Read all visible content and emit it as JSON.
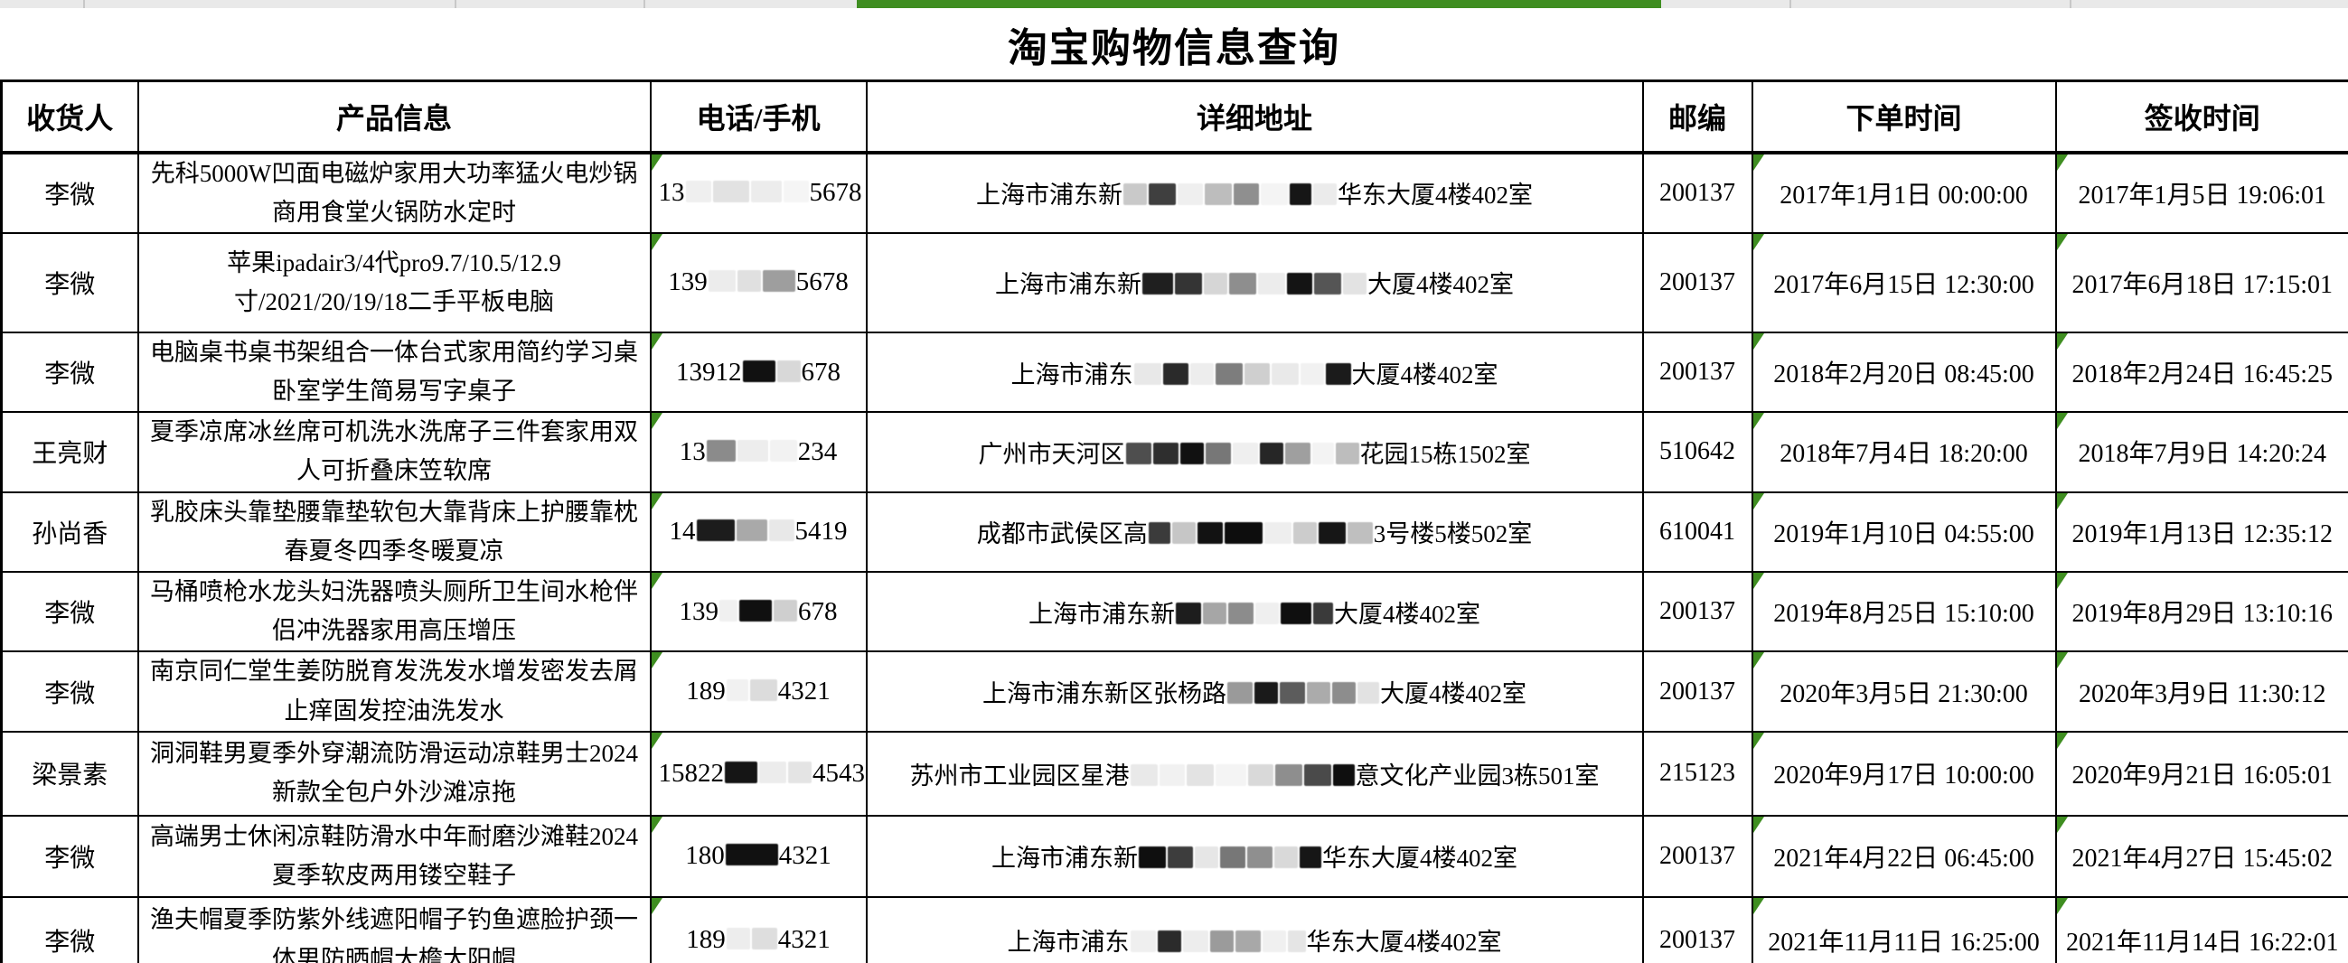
{
  "title": "淘宝购物信息查询",
  "accent_green": "#3f8e21",
  "columns": [
    {
      "key": "receiver",
      "label": "收货人"
    },
    {
      "key": "product",
      "label": "产品信息"
    },
    {
      "key": "phone",
      "label": "电话/手机"
    },
    {
      "key": "address",
      "label": "详细地址"
    },
    {
      "key": "postal",
      "label": "邮编"
    },
    {
      "key": "order_time",
      "label": "下单时间"
    },
    {
      "key": "sign_time",
      "label": "签收时间"
    }
  ],
  "error_flag_columns": [
    "phone",
    "order_time",
    "sign_time"
  ],
  "rows": [
    {
      "receiver": "李微",
      "product": "先科5000W凹面电磁炉家用大功率猛火电炒锅商用食堂火锅防水定时",
      "phone": {
        "prefix": "13",
        "masks": [
          {
            "w": 28,
            "c": "#efefef"
          },
          {
            "w": 40,
            "c": "#e2e2e2"
          },
          {
            "w": 34,
            "c": "#ececec"
          },
          {
            "w": 28,
            "c": "#f5f5f5"
          }
        ],
        "suffix": "5678"
      },
      "address": {
        "prefix": "上海市浦东新",
        "masks": [
          {
            "w": 26,
            "c": "#c9c9c9"
          },
          {
            "w": 30,
            "c": "#3f3f3f"
          },
          {
            "w": 28,
            "c": "#efefef"
          },
          {
            "w": 30,
            "c": "#bdbdbd"
          },
          {
            "w": 28,
            "c": "#8f8f8f"
          },
          {
            "w": 30,
            "c": "#f4f4f4"
          },
          {
            "w": 24,
            "c": "#161616"
          },
          {
            "w": 26,
            "c": "#ebebeb"
          }
        ],
        "suffix": "华东大厦4楼402室"
      },
      "postal": "200137",
      "order_time": "2017年1月1日 00:00:00",
      "sign_time": "2017年1月5日 19:06:01"
    },
    {
      "receiver": "李微",
      "product": "苹果ipadair3/4代pro9.7/10.5/12.9寸/2021/20/19/18二手平板电脑",
      "phone": {
        "prefix": "139",
        "masks": [
          {
            "w": 30,
            "c": "#ececec"
          },
          {
            "w": 26,
            "c": "#e0e0e0"
          },
          {
            "w": 36,
            "c": "#9e9e9e"
          }
        ],
        "suffix": "5678"
      },
      "address": {
        "prefix": "上海市浦东新",
        "masks": [
          {
            "w": 34,
            "c": "#1f1f1f"
          },
          {
            "w": 30,
            "c": "#343434"
          },
          {
            "w": 26,
            "c": "#d6d6d6"
          },
          {
            "w": 30,
            "c": "#8e8e8e"
          },
          {
            "w": 30,
            "c": "#ececec"
          },
          {
            "w": 28,
            "c": "#141414"
          },
          {
            "w": 30,
            "c": "#555555"
          },
          {
            "w": 26,
            "c": "#e3e3e3"
          }
        ],
        "suffix": "大厦4楼402室"
      },
      "postal": "200137",
      "order_time": "2017年6月15日 12:30:00",
      "sign_time": "2017年6月18日 17:15:01"
    },
    {
      "receiver": "李微",
      "product": "电脑桌书桌书架组合一体台式家用简约学习桌卧室学生简易写字桌子",
      "phone": {
        "prefix": "13912",
        "masks": [
          {
            "w": 36,
            "c": "#111111"
          },
          {
            "w": 26,
            "c": "#d8d8d8"
          }
        ],
        "suffix": "678"
      },
      "address": {
        "prefix": "上海市浦东",
        "masks": [
          {
            "w": 30,
            "c": "#e8e8e8"
          },
          {
            "w": 28,
            "c": "#2a2a2a"
          },
          {
            "w": 26,
            "c": "#ededed"
          },
          {
            "w": 30,
            "c": "#7d7d7d"
          },
          {
            "w": 28,
            "c": "#cfcfcf"
          },
          {
            "w": 30,
            "c": "#e9e9e9"
          },
          {
            "w": 26,
            "c": "#f1f1f1"
          },
          {
            "w": 28,
            "c": "#1b1b1b"
          }
        ],
        "suffix": "大厦4楼402室"
      },
      "postal": "200137",
      "order_time": "2018年2月20日 08:45:00",
      "sign_time": "2018年2月24日 16:45:25"
    },
    {
      "receiver": "王亮财",
      "product": "夏季凉席冰丝席可机洗水洗席子三件套家用双人可折叠床笠软席",
      "phone": {
        "prefix": "13",
        "masks": [
          {
            "w": 32,
            "c": "#8b8b8b"
          },
          {
            "w": 34,
            "c": "#ededed"
          },
          {
            "w": 30,
            "c": "#f2f2f2"
          }
        ],
        "suffix": "234"
      },
      "address": {
        "prefix": "广州市天河区",
        "masks": [
          {
            "w": 28,
            "c": "#4e4e4e"
          },
          {
            "w": 28,
            "c": "#2e2e2e"
          },
          {
            "w": 26,
            "c": "#111111"
          },
          {
            "w": 28,
            "c": "#777777"
          },
          {
            "w": 28,
            "c": "#efefef"
          },
          {
            "w": 26,
            "c": "#262626"
          },
          {
            "w": 28,
            "c": "#9f9f9f"
          },
          {
            "w": 24,
            "c": "#f3f3f3"
          },
          {
            "w": 26,
            "c": "#bdbdbd"
          }
        ],
        "suffix": "花园15栋1502室"
      },
      "postal": "510642",
      "order_time": "2018年7月4日 18:20:00",
      "sign_time": "2018年7月9日 14:20:24"
    },
    {
      "receiver": "孙尚香",
      "product": "乳胶床头靠垫腰靠垫软包大靠背床上护腰靠枕春夏冬四季冬暖夏凉",
      "phone": {
        "prefix": "14",
        "masks": [
          {
            "w": 42,
            "c": "#1c1c1c"
          },
          {
            "w": 34,
            "c": "#a9a9a9"
          },
          {
            "w": 28,
            "c": "#e8e8e8"
          }
        ],
        "suffix": "5419"
      },
      "address": {
        "prefix": "成都市武侯区高",
        "masks": [
          {
            "w": 24,
            "c": "#3b3b3b"
          },
          {
            "w": 26,
            "c": "#c6c6c6"
          },
          {
            "w": 28,
            "c": "#121212"
          },
          {
            "w": 42,
            "c": "#0d0d0d"
          },
          {
            "w": 30,
            "c": "#eeeeee"
          },
          {
            "w": 26,
            "c": "#cccccc"
          },
          {
            "w": 30,
            "c": "#161616"
          },
          {
            "w": 28,
            "c": "#bfbfbf"
          }
        ],
        "suffix": "3号楼5楼502室"
      },
      "postal": "610041",
      "order_time": "2019年1月10日 04:55:00",
      "sign_time": "2019年1月13日 12:35:12"
    },
    {
      "receiver": "李微",
      "product": "马桶喷枪水龙头妇洗器喷头厕所卫生间水枪伴侣冲洗器家用高压增压",
      "phone": {
        "prefix": "139",
        "masks": [
          {
            "w": 20,
            "c": "#f0f0f0"
          },
          {
            "w": 36,
            "c": "#101010"
          },
          {
            "w": 26,
            "c": "#cfcfcf"
          }
        ],
        "suffix": "678"
      },
      "address": {
        "prefix": "上海市浦东新",
        "masks": [
          {
            "w": 28,
            "c": "#1d1d1d"
          },
          {
            "w": 26,
            "c": "#a6a6a6"
          },
          {
            "w": 28,
            "c": "#8c8c8c"
          },
          {
            "w": 26,
            "c": "#efefef"
          },
          {
            "w": 34,
            "c": "#0f0f0f"
          },
          {
            "w": 22,
            "c": "#3a3a3a"
          }
        ],
        "suffix": "大厦4楼402室"
      },
      "postal": "200137",
      "order_time": "2019年8月25日 15:10:00",
      "sign_time": "2019年8月29日 13:10:16"
    },
    {
      "receiver": "李微",
      "product": "南京同仁堂生姜防脱育发洗发水增发密发去屑止痒固发控油洗发水",
      "phone": {
        "prefix": "189",
        "masks": [
          {
            "w": 24,
            "c": "#f1f1f1"
          },
          {
            "w": 30,
            "c": "#dcdcdc"
          }
        ],
        "suffix": "4321"
      },
      "address": {
        "prefix": "上海市浦东新区张杨路",
        "masks": [
          {
            "w": 28,
            "c": "#9a9a9a"
          },
          {
            "w": 26,
            "c": "#1a1a1a"
          },
          {
            "w": 28,
            "c": "#5c5c5c"
          },
          {
            "w": 26,
            "c": "#ababab"
          },
          {
            "w": 26,
            "c": "#8d8d8d"
          },
          {
            "w": 24,
            "c": "#e2e2e2"
          }
        ],
        "suffix": "大厦4楼402室"
      },
      "postal": "200137",
      "order_time": "2020年3月5日 21:30:00",
      "sign_time": "2020年3月9日 11:30:12"
    },
    {
      "receiver": "梁景素",
      "product": "洞洞鞋男夏季外穿潮流防滑运动凉鞋男士2024新款全包户外沙滩凉拖",
      "phone": {
        "prefix": "15822",
        "masks": [
          {
            "w": 36,
            "c": "#151515"
          },
          {
            "w": 30,
            "c": "#ececec"
          },
          {
            "w": 26,
            "c": "#e4e4e4"
          }
        ],
        "suffix": "4543"
      },
      "address": {
        "prefix": "苏州市工业园区星港",
        "masks": [
          {
            "w": 30,
            "c": "#e9e9e9"
          },
          {
            "w": 28,
            "c": "#f1f1f1"
          },
          {
            "w": 30,
            "c": "#e3e3e3"
          },
          {
            "w": 34,
            "c": "#f4f4f4"
          },
          {
            "w": 28,
            "c": "#d9d9d9"
          },
          {
            "w": 30,
            "c": "#8e8e8e"
          },
          {
            "w": 30,
            "c": "#4a4a4a"
          },
          {
            "w": 24,
            "c": "#0f0f0f"
          }
        ],
        "suffix": "意文化产业园3栋501室"
      },
      "postal": "215123",
      "order_time": "2020年9月17日 10:00:00",
      "sign_time": "2020年9月21日 16:05:01"
    },
    {
      "receiver": "李微",
      "product": "高端男士休闲凉鞋防滑水中年耐磨沙滩鞋2024夏季软皮两用镂空鞋子",
      "phone": {
        "prefix": "180",
        "masks": [
          {
            "w": 58,
            "c": "#111111"
          }
        ],
        "suffix": "4321"
      },
      "address": {
        "prefix": "上海市浦东新",
        "masks": [
          {
            "w": 30,
            "c": "#0f0f0f"
          },
          {
            "w": 28,
            "c": "#3d3d3d"
          },
          {
            "w": 26,
            "c": "#e6e6e6"
          },
          {
            "w": 28,
            "c": "#777777"
          },
          {
            "w": 28,
            "c": "#8f8f8f"
          },
          {
            "w": 26,
            "c": "#d9d9d9"
          },
          {
            "w": 24,
            "c": "#161616"
          }
        ],
        "suffix": "华东大厦4楼402室"
      },
      "postal": "200137",
      "order_time": "2021年4月22日 06:45:00",
      "sign_time": "2021年4月27日 15:45:02"
    },
    {
      "receiver": "李微",
      "product": "渔夫帽夏季防紫外线遮阳帽子钓鱼遮脸护颈一体男防晒帽大檐太阳帽",
      "phone": {
        "prefix": "189",
        "masks": [
          {
            "w": 26,
            "c": "#ededed"
          },
          {
            "w": 28,
            "c": "#dedede"
          }
        ],
        "suffix": "4321"
      },
      "address": {
        "prefix": "上海市浦东",
        "masks": [
          {
            "w": 28,
            "c": "#efefef"
          },
          {
            "w": 26,
            "c": "#2b2b2b"
          },
          {
            "w": 28,
            "c": "#ededed"
          },
          {
            "w": 26,
            "c": "#9b9b9b"
          },
          {
            "w": 28,
            "c": "#a8a8a8"
          },
          {
            "w": 26,
            "c": "#f0f0f0"
          },
          {
            "w": 20,
            "c": "#e5e5e5"
          }
        ],
        "suffix": "华东大厦4楼402室"
      },
      "postal": "200137",
      "order_time": "2021年11月11日 16:25:00",
      "sign_time": "2021年11月14日 16:22:01"
    }
  ]
}
